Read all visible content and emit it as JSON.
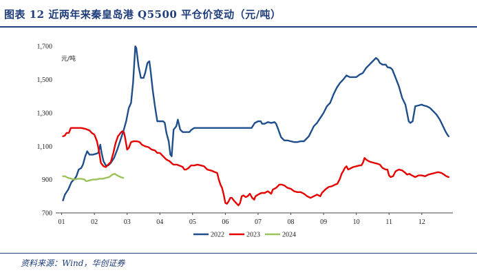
{
  "header": {
    "title": "图表 12   近两年来秦皇岛港 Q5500 平仓价变动（元/吨）"
  },
  "footer": {
    "source": "资料来源：Wind，华创证券"
  },
  "chart_data": {
    "type": "line",
    "title": "图表 12   近两年来秦皇岛港 Q5500 平仓价变动（元/吨）",
    "ylabel": "元/吨",
    "xlabel": "",
    "x_unit": "month",
    "xlim": [
      1,
      12.95
    ],
    "ylim": [
      700,
      1800
    ],
    "yticks": [
      700,
      900,
      1100,
      1300,
      1500,
      1700
    ],
    "ytick_labels": [
      "700",
      "900",
      "1,100",
      "1,300",
      "1,500",
      "1,700"
    ],
    "xticks": [
      1,
      2,
      3,
      4,
      5,
      6,
      7,
      8,
      9,
      10,
      11,
      12
    ],
    "xtick_labels": [
      "01",
      "02",
      "03",
      "04",
      "05",
      "06",
      "07",
      "08",
      "09",
      "10",
      "11",
      "12"
    ],
    "grid": false,
    "legend_position": "bottom",
    "series": [
      {
        "name": "2022",
        "color": "#1f4e8c",
        "points": [
          [
            1.04,
            775
          ],
          [
            1.1,
            810
          ],
          [
            1.2,
            840
          ],
          [
            1.3,
            885
          ],
          [
            1.4,
            905
          ],
          [
            1.45,
            920
          ],
          [
            1.52,
            960
          ],
          [
            1.6,
            970
          ],
          [
            1.65,
            990
          ],
          [
            1.72,
            1040
          ],
          [
            1.78,
            1070
          ],
          [
            1.85,
            1050
          ],
          [
            1.95,
            1050
          ],
          [
            2.05,
            1055
          ],
          [
            2.12,
            1060
          ],
          [
            2.18,
            1110
          ],
          [
            2.22,
            1060
          ],
          [
            2.28,
            1010
          ],
          [
            2.35,
            985
          ],
          [
            2.42,
            985
          ],
          [
            2.5,
            1000
          ],
          [
            2.6,
            1030
          ],
          [
            2.7,
            1080
          ],
          [
            2.8,
            1140
          ],
          [
            2.9,
            1200
          ],
          [
            2.97,
            1250
          ],
          [
            3.05,
            1330
          ],
          [
            3.12,
            1360
          ],
          [
            3.18,
            1480
          ],
          [
            3.25,
            1700
          ],
          [
            3.28,
            1690
          ],
          [
            3.35,
            1580
          ],
          [
            3.42,
            1510
          ],
          [
            3.5,
            1510
          ],
          [
            3.55,
            1540
          ],
          [
            3.62,
            1600
          ],
          [
            3.68,
            1610
          ],
          [
            3.72,
            1550
          ],
          [
            3.78,
            1440
          ],
          [
            3.85,
            1340
          ],
          [
            3.92,
            1250
          ],
          [
            4.0,
            1250
          ],
          [
            4.1,
            1250
          ],
          [
            4.15,
            1240
          ],
          [
            4.2,
            1180
          ],
          [
            4.27,
            1130
          ],
          [
            4.32,
            1050
          ],
          [
            4.36,
            1040
          ],
          [
            4.42,
            1200
          ],
          [
            4.5,
            1220
          ],
          [
            4.55,
            1260
          ],
          [
            4.62,
            1200
          ],
          [
            4.7,
            1185
          ],
          [
            4.8,
            1185
          ],
          [
            4.9,
            1185
          ],
          [
            4.97,
            1200
          ],
          [
            5.05,
            1210
          ],
          [
            5.1,
            1210
          ],
          [
            5.5,
            1210
          ],
          [
            6.0,
            1210
          ],
          [
            6.5,
            1210
          ],
          [
            6.8,
            1210
          ],
          [
            6.9,
            1240
          ],
          [
            7.0,
            1250
          ],
          [
            7.08,
            1250
          ],
          [
            7.12,
            1235
          ],
          [
            7.2,
            1235
          ],
          [
            7.3,
            1245
          ],
          [
            7.4,
            1240
          ],
          [
            7.5,
            1245
          ],
          [
            7.55,
            1235
          ],
          [
            7.6,
            1210
          ],
          [
            7.7,
            1155
          ],
          [
            7.8,
            1135
          ],
          [
            7.9,
            1135
          ],
          [
            8.0,
            1130
          ],
          [
            8.1,
            1125
          ],
          [
            8.2,
            1125
          ],
          [
            8.3,
            1130
          ],
          [
            8.4,
            1130
          ],
          [
            8.55,
            1160
          ],
          [
            8.65,
            1200
          ],
          [
            8.7,
            1220
          ],
          [
            8.8,
            1240
          ],
          [
            8.9,
            1270
          ],
          [
            9.0,
            1300
          ],
          [
            9.1,
            1340
          ],
          [
            9.2,
            1360
          ],
          [
            9.3,
            1410
          ],
          [
            9.4,
            1450
          ],
          [
            9.5,
            1480
          ],
          [
            9.6,
            1500
          ],
          [
            9.7,
            1525
          ],
          [
            9.8,
            1515
          ],
          [
            9.9,
            1515
          ],
          [
            10.0,
            1515
          ],
          [
            10.1,
            1530
          ],
          [
            10.2,
            1540
          ],
          [
            10.3,
            1570
          ],
          [
            10.4,
            1590
          ],
          [
            10.5,
            1610
          ],
          [
            10.6,
            1630
          ],
          [
            10.66,
            1620
          ],
          [
            10.72,
            1600
          ],
          [
            10.8,
            1590
          ],
          [
            10.9,
            1590
          ],
          [
            10.95,
            1575
          ],
          [
            11.05,
            1570
          ],
          [
            11.1,
            1560
          ],
          [
            11.2,
            1510
          ],
          [
            11.3,
            1460
          ],
          [
            11.4,
            1390
          ],
          [
            11.5,
            1350
          ],
          [
            11.55,
            1300
          ],
          [
            11.6,
            1250
          ],
          [
            11.65,
            1240
          ],
          [
            11.72,
            1250
          ],
          [
            11.8,
            1340
          ],
          [
            11.9,
            1345
          ],
          [
            12.0,
            1350
          ],
          [
            12.05,
            1345
          ],
          [
            12.15,
            1340
          ],
          [
            12.25,
            1330
          ],
          [
            12.35,
            1310
          ],
          [
            12.45,
            1290
          ],
          [
            12.55,
            1260
          ],
          [
            12.65,
            1220
          ],
          [
            12.72,
            1190
          ],
          [
            12.78,
            1170
          ],
          [
            12.82,
            1160
          ]
        ]
      },
      {
        "name": "2023",
        "color": "#e60000",
        "points": [
          [
            1.04,
            1160
          ],
          [
            1.1,
            1165
          ],
          [
            1.15,
            1180
          ],
          [
            1.22,
            1180
          ],
          [
            1.28,
            1210
          ],
          [
            1.4,
            1210
          ],
          [
            1.6,
            1210
          ],
          [
            1.72,
            1205
          ],
          [
            1.85,
            1195
          ],
          [
            1.92,
            1180
          ],
          [
            2.0,
            1170
          ],
          [
            2.08,
            1130
          ],
          [
            2.15,
            1060
          ],
          [
            2.2,
            1000
          ],
          [
            2.28,
            980
          ],
          [
            2.35,
            975
          ],
          [
            2.42,
            990
          ],
          [
            2.5,
            1005
          ],
          [
            2.58,
            1060
          ],
          [
            2.65,
            1120
          ],
          [
            2.72,
            1160
          ],
          [
            2.8,
            1180
          ],
          [
            2.85,
            1190
          ],
          [
            2.9,
            1185
          ],
          [
            2.93,
            1160
          ],
          [
            3.0,
            1080
          ],
          [
            3.05,
            1090
          ],
          [
            3.12,
            1125
          ],
          [
            3.2,
            1130
          ],
          [
            3.3,
            1130
          ],
          [
            3.38,
            1125
          ],
          [
            3.45,
            1110
          ],
          [
            3.55,
            1100
          ],
          [
            3.65,
            1095
          ],
          [
            3.75,
            1080
          ],
          [
            3.85,
            1075
          ],
          [
            3.92,
            1060
          ],
          [
            4.0,
            1060
          ],
          [
            4.1,
            1040
          ],
          [
            4.2,
            1020
          ],
          [
            4.3,
            1010
          ],
          [
            4.38,
            995
          ],
          [
            4.42,
            990
          ],
          [
            4.52,
            990
          ],
          [
            4.58,
            985
          ],
          [
            4.65,
            980
          ],
          [
            4.7,
            975
          ],
          [
            4.75,
            960
          ],
          [
            4.8,
            960
          ],
          [
            4.88,
            970
          ],
          [
            4.95,
            985
          ],
          [
            5.05,
            985
          ],
          [
            5.15,
            990
          ],
          [
            5.25,
            985
          ],
          [
            5.35,
            980
          ],
          [
            5.45,
            960
          ],
          [
            5.55,
            955
          ],
          [
            5.62,
            950
          ],
          [
            5.68,
            945
          ],
          [
            5.75,
            940
          ],
          [
            5.8,
            900
          ],
          [
            5.85,
            870
          ],
          [
            5.9,
            850
          ],
          [
            5.95,
            810
          ],
          [
            6.0,
            760
          ],
          [
            6.05,
            755
          ],
          [
            6.1,
            770
          ],
          [
            6.15,
            790
          ],
          [
            6.2,
            790
          ],
          [
            6.28,
            770
          ],
          [
            6.35,
            755
          ],
          [
            6.4,
            745
          ],
          [
            6.45,
            760
          ],
          [
            6.5,
            800
          ],
          [
            6.55,
            805
          ],
          [
            6.62,
            795
          ],
          [
            6.68,
            800
          ],
          [
            6.75,
            815
          ],
          [
            6.82,
            790
          ],
          [
            6.88,
            780
          ],
          [
            6.92,
            800
          ],
          [
            7.0,
            810
          ],
          [
            7.1,
            820
          ],
          [
            7.2,
            820
          ],
          [
            7.3,
            830
          ],
          [
            7.4,
            815
          ],
          [
            7.45,
            840
          ],
          [
            7.55,
            850
          ],
          [
            7.65,
            870
          ],
          [
            7.72,
            870
          ],
          [
            7.8,
            865
          ],
          [
            7.9,
            850
          ],
          [
            8.0,
            845
          ],
          [
            8.1,
            830
          ],
          [
            8.2,
            825
          ],
          [
            8.3,
            825
          ],
          [
            8.4,
            815
          ],
          [
            8.5,
            800
          ],
          [
            8.6,
            790
          ],
          [
            8.7,
            800
          ],
          [
            8.8,
            810
          ],
          [
            8.9,
            800
          ],
          [
            8.95,
            820
          ],
          [
            9.05,
            840
          ],
          [
            9.15,
            855
          ],
          [
            9.25,
            860
          ],
          [
            9.35,
            870
          ],
          [
            9.42,
            875
          ],
          [
            9.5,
            905
          ],
          [
            9.55,
            935
          ],
          [
            9.6,
            950
          ],
          [
            9.65,
            970
          ],
          [
            9.7,
            980
          ],
          [
            9.75,
            960
          ],
          [
            9.8,
            965
          ],
          [
            9.9,
            975
          ],
          [
            10.0,
            980
          ],
          [
            10.1,
            985
          ],
          [
            10.15,
            985
          ],
          [
            10.2,
            1000
          ],
          [
            10.25,
            1030
          ],
          [
            10.3,
            1020
          ],
          [
            10.38,
            1010
          ],
          [
            10.45,
            1005
          ],
          [
            10.55,
            1000
          ],
          [
            10.65,
            995
          ],
          [
            10.72,
            990
          ],
          [
            10.8,
            970
          ],
          [
            10.9,
            960
          ],
          [
            10.95,
            960
          ],
          [
            11.0,
            925
          ],
          [
            11.05,
            915
          ],
          [
            11.12,
            920
          ],
          [
            11.2,
            950
          ],
          [
            11.3,
            960
          ],
          [
            11.4,
            955
          ],
          [
            11.5,
            940
          ],
          [
            11.55,
            930
          ],
          [
            11.62,
            935
          ],
          [
            11.7,
            925
          ],
          [
            11.8,
            915
          ],
          [
            11.9,
            925
          ],
          [
            12.0,
            925
          ],
          [
            12.1,
            920
          ],
          [
            12.2,
            930
          ],
          [
            12.3,
            935
          ],
          [
            12.4,
            940
          ],
          [
            12.5,
            945
          ],
          [
            12.6,
            940
          ],
          [
            12.68,
            930
          ],
          [
            12.75,
            920
          ],
          [
            12.82,
            915
          ]
        ]
      },
      {
        "name": "2024",
        "color": "#9cc35a",
        "points": [
          [
            1.04,
            920
          ],
          [
            1.1,
            920
          ],
          [
            1.2,
            910
          ],
          [
            1.3,
            905
          ],
          [
            1.4,
            900
          ],
          [
            1.5,
            905
          ],
          [
            1.6,
            905
          ],
          [
            1.7,
            900
          ],
          [
            1.75,
            890
          ],
          [
            1.85,
            895
          ],
          [
            1.95,
            900
          ],
          [
            2.05,
            900
          ],
          [
            2.15,
            905
          ],
          [
            2.25,
            905
          ],
          [
            2.35,
            910
          ],
          [
            2.45,
            915
          ],
          [
            2.55,
            930
          ],
          [
            2.62,
            935
          ],
          [
            2.7,
            925
          ],
          [
            2.8,
            915
          ],
          [
            2.88,
            910
          ]
        ]
      }
    ]
  }
}
